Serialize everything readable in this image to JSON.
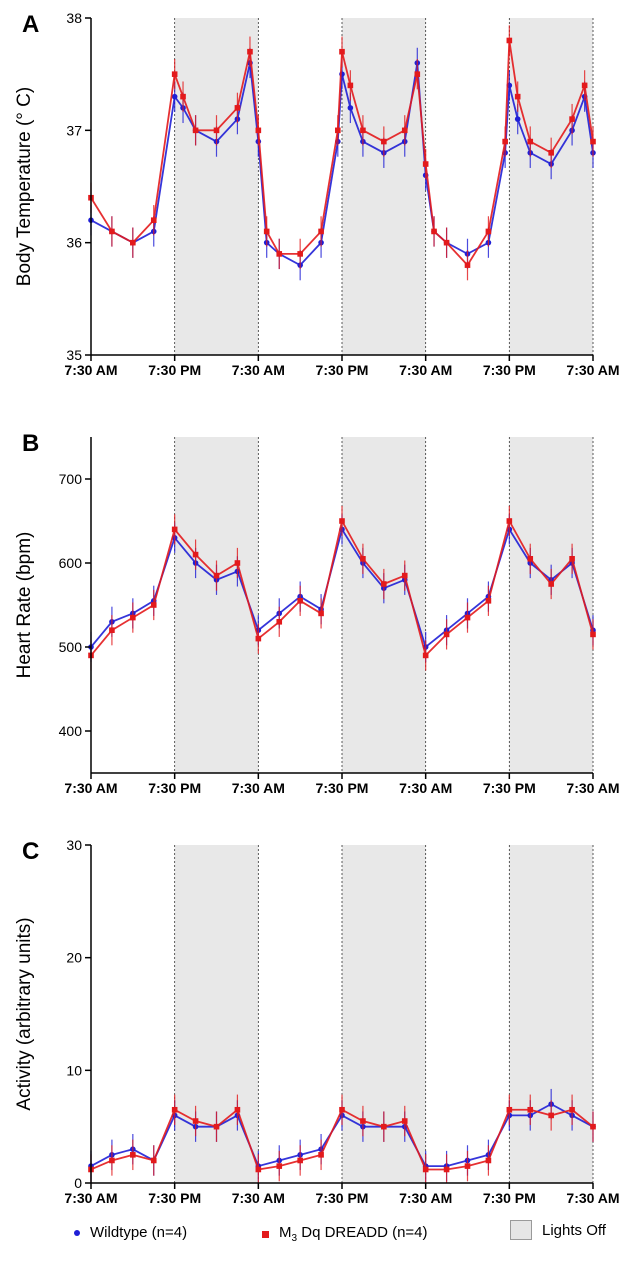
{
  "panels": [
    {
      "letter": "A"
    },
    {
      "letter": "B"
    },
    {
      "letter": "C"
    }
  ],
  "chart_data": [
    {
      "type": "line",
      "panel": "A",
      "ylabel": "Body Temperature (° C)",
      "ylim": [
        35,
        38
      ],
      "yticks": [
        35,
        36,
        37,
        38
      ],
      "x_ticks": [
        "7:30 AM",
        "7:30 PM",
        "7:30 AM",
        "7:30 PM",
        "7:30 AM",
        "7:30 PM",
        "7:30 AM"
      ],
      "lights_off_periods": [
        [
          1,
          2
        ],
        [
          3,
          4
        ],
        [
          5,
          6
        ]
      ],
      "series": [
        {
          "name": "Wildtype (n=4)",
          "color": "#1f1fd6",
          "marker": "circle",
          "x": [
            0,
            0.25,
            0.5,
            0.75,
            1,
            1.1,
            1.25,
            1.5,
            1.75,
            1.9,
            2,
            2.1,
            2.25,
            2.5,
            2.75,
            2.95,
            3,
            3.1,
            3.25,
            3.5,
            3.75,
            3.9,
            4,
            4.1,
            4.25,
            4.5,
            4.75,
            4.95,
            5,
            5.1,
            5.25,
            5.5,
            5.75,
            5.9,
            6
          ],
          "y": [
            36.2,
            36.1,
            36.0,
            36.1,
            37.3,
            37.2,
            37.0,
            36.9,
            37.1,
            37.6,
            36.9,
            36.0,
            35.9,
            35.8,
            36.0,
            36.9,
            37.5,
            37.2,
            36.9,
            36.8,
            36.9,
            37.6,
            36.6,
            36.1,
            36.0,
            35.9,
            36.0,
            36.8,
            37.4,
            37.1,
            36.8,
            36.7,
            37.0,
            37.3,
            36.8
          ]
        },
        {
          "name": "M3 Dq DREADD (n=4)",
          "color": "#e31a1c",
          "marker": "square",
          "x": [
            0,
            0.25,
            0.5,
            0.75,
            1,
            1.1,
            1.25,
            1.5,
            1.75,
            1.9,
            2,
            2.1,
            2.25,
            2.5,
            2.75,
            2.95,
            3,
            3.1,
            3.25,
            3.5,
            3.75,
            3.9,
            4,
            4.1,
            4.25,
            4.5,
            4.75,
            4.95,
            5,
            5.1,
            5.25,
            5.5,
            5.75,
            5.9,
            6
          ],
          "y": [
            36.4,
            36.1,
            36.0,
            36.2,
            37.5,
            37.3,
            37.0,
            37.0,
            37.2,
            37.7,
            37.0,
            36.1,
            35.9,
            35.9,
            36.1,
            37.0,
            37.7,
            37.4,
            37.0,
            36.9,
            37.0,
            37.5,
            36.7,
            36.1,
            36.0,
            35.8,
            36.1,
            36.9,
            37.8,
            37.3,
            36.9,
            36.8,
            37.1,
            37.4,
            36.9
          ]
        }
      ]
    },
    {
      "type": "line",
      "panel": "B",
      "ylabel": "Heart Rate (bpm)",
      "ylim": [
        350,
        750
      ],
      "yticks": [
        400,
        500,
        600,
        700
      ],
      "x_ticks": [
        "7:30 AM",
        "7:30 PM",
        "7:30 AM",
        "7:30 PM",
        "7:30 AM",
        "7:30 PM",
        "7:30 AM"
      ],
      "lights_off_periods": [
        [
          1,
          2
        ],
        [
          3,
          4
        ],
        [
          5,
          6
        ]
      ],
      "series": [
        {
          "name": "Wildtype (n=4)",
          "color": "#1f1fd6",
          "marker": "circle",
          "x": [
            0,
            0.25,
            0.5,
            0.75,
            1,
            1.25,
            1.5,
            1.75,
            2,
            2.25,
            2.5,
            2.75,
            3,
            3.25,
            3.5,
            3.75,
            4,
            4.25,
            4.5,
            4.75,
            5,
            5.25,
            5.5,
            5.75,
            6
          ],
          "y": [
            500,
            530,
            540,
            555,
            630,
            600,
            580,
            590,
            520,
            540,
            560,
            545,
            640,
            600,
            570,
            580,
            500,
            520,
            540,
            560,
            640,
            600,
            580,
            600,
            520
          ]
        },
        {
          "name": "M3 Dq DREADD (n=4)",
          "color": "#e31a1c",
          "marker": "square",
          "x": [
            0,
            0.25,
            0.5,
            0.75,
            1,
            1.25,
            1.5,
            1.75,
            2,
            2.25,
            2.5,
            2.75,
            3,
            3.25,
            3.5,
            3.75,
            4,
            4.25,
            4.5,
            4.75,
            5,
            5.25,
            5.5,
            5.75,
            6
          ],
          "y": [
            490,
            520,
            535,
            550,
            640,
            610,
            585,
            600,
            510,
            530,
            555,
            540,
            650,
            605,
            575,
            585,
            490,
            515,
            535,
            555,
            650,
            605,
            575,
            605,
            515
          ]
        }
      ]
    },
    {
      "type": "line",
      "panel": "C",
      "ylabel": "Activity (arbitrary units)",
      "ylim": [
        0,
        30
      ],
      "yticks": [
        0,
        10,
        20,
        30
      ],
      "x_ticks": [
        "7:30 AM",
        "7:30 PM",
        "7:30 AM",
        "7:30 PM",
        "7:30 AM",
        "7:30 PM",
        "7:30 AM"
      ],
      "lights_off_periods": [
        [
          1,
          2
        ],
        [
          3,
          4
        ],
        [
          5,
          6
        ]
      ],
      "series": [
        {
          "name": "Wildtype (n=4)",
          "color": "#1f1fd6",
          "marker": "circle",
          "x": [
            0,
            0.25,
            0.5,
            0.75,
            1,
            1.25,
            1.5,
            1.75,
            2,
            2.25,
            2.5,
            2.75,
            3,
            3.25,
            3.5,
            3.75,
            4,
            4.25,
            4.5,
            4.75,
            5,
            5.25,
            5.5,
            5.75,
            6
          ],
          "y": [
            1.5,
            2.5,
            3,
            2,
            6,
            5,
            5,
            6,
            1.5,
            2,
            2.5,
            3,
            6,
            5,
            5,
            5,
            1.5,
            1.5,
            2,
            2.5,
            6,
            6,
            7,
            6,
            5
          ]
        },
        {
          "name": "M3 Dq DREADD (n=4)",
          "color": "#e31a1c",
          "marker": "square",
          "x": [
            0,
            0.25,
            0.5,
            0.75,
            1,
            1.25,
            1.5,
            1.75,
            2,
            2.25,
            2.5,
            2.75,
            3,
            3.25,
            3.5,
            3.75,
            4,
            4.25,
            4.5,
            4.75,
            5,
            5.25,
            5.5,
            5.75,
            6
          ],
          "y": [
            1.2,
            2,
            2.5,
            2,
            6.5,
            5.5,
            5,
            6.5,
            1.2,
            1.5,
            2,
            2.5,
            6.5,
            5.5,
            5,
            5.5,
            1.2,
            1.2,
            1.5,
            2,
            6.5,
            6.5,
            6,
            6.5,
            5
          ]
        }
      ]
    }
  ],
  "legend": {
    "wildtype": "Wildtype (n=4)",
    "dreadd_pre": "M",
    "dreadd_sub": "3",
    "dreadd_post": " Dq DREADD (n=4)",
    "lights_off": "Lights Off"
  }
}
